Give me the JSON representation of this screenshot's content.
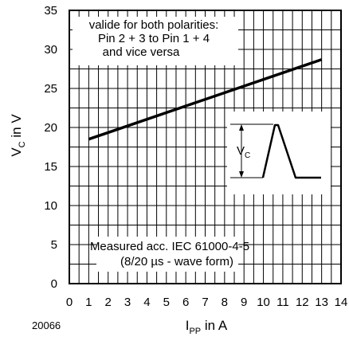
{
  "chart_data": {
    "type": "line",
    "xlabel": {
      "main": "I",
      "sub": "PP",
      "suffix": " in A"
    },
    "ylabel": {
      "main": "V",
      "sub": "C",
      "suffix": " in V"
    },
    "xlim": [
      0,
      14
    ],
    "ylim": [
      0,
      35
    ],
    "x_ticks": [
      0,
      1,
      2,
      3,
      4,
      5,
      6,
      7,
      8,
      9,
      10,
      11,
      12,
      13,
      14
    ],
    "y_ticks": [
      0,
      5,
      10,
      15,
      20,
      25,
      30,
      35
    ],
    "grid": true,
    "series": [
      {
        "x": [
          1,
          13
        ],
        "values": [
          18.5,
          28.7
        ]
      }
    ],
    "annotations": {
      "top": [
        "valide for both polarities:",
        "Pin 2 + 3 to Pin 1 + 4",
        "and vice versa"
      ],
      "bottom": [
        "Measured acc. IEC 61000-4-5",
        "(8/20 µs - wave form)"
      ],
      "inset_label": {
        "main": "V",
        "sub": "C"
      }
    },
    "figure_id": "20066"
  }
}
